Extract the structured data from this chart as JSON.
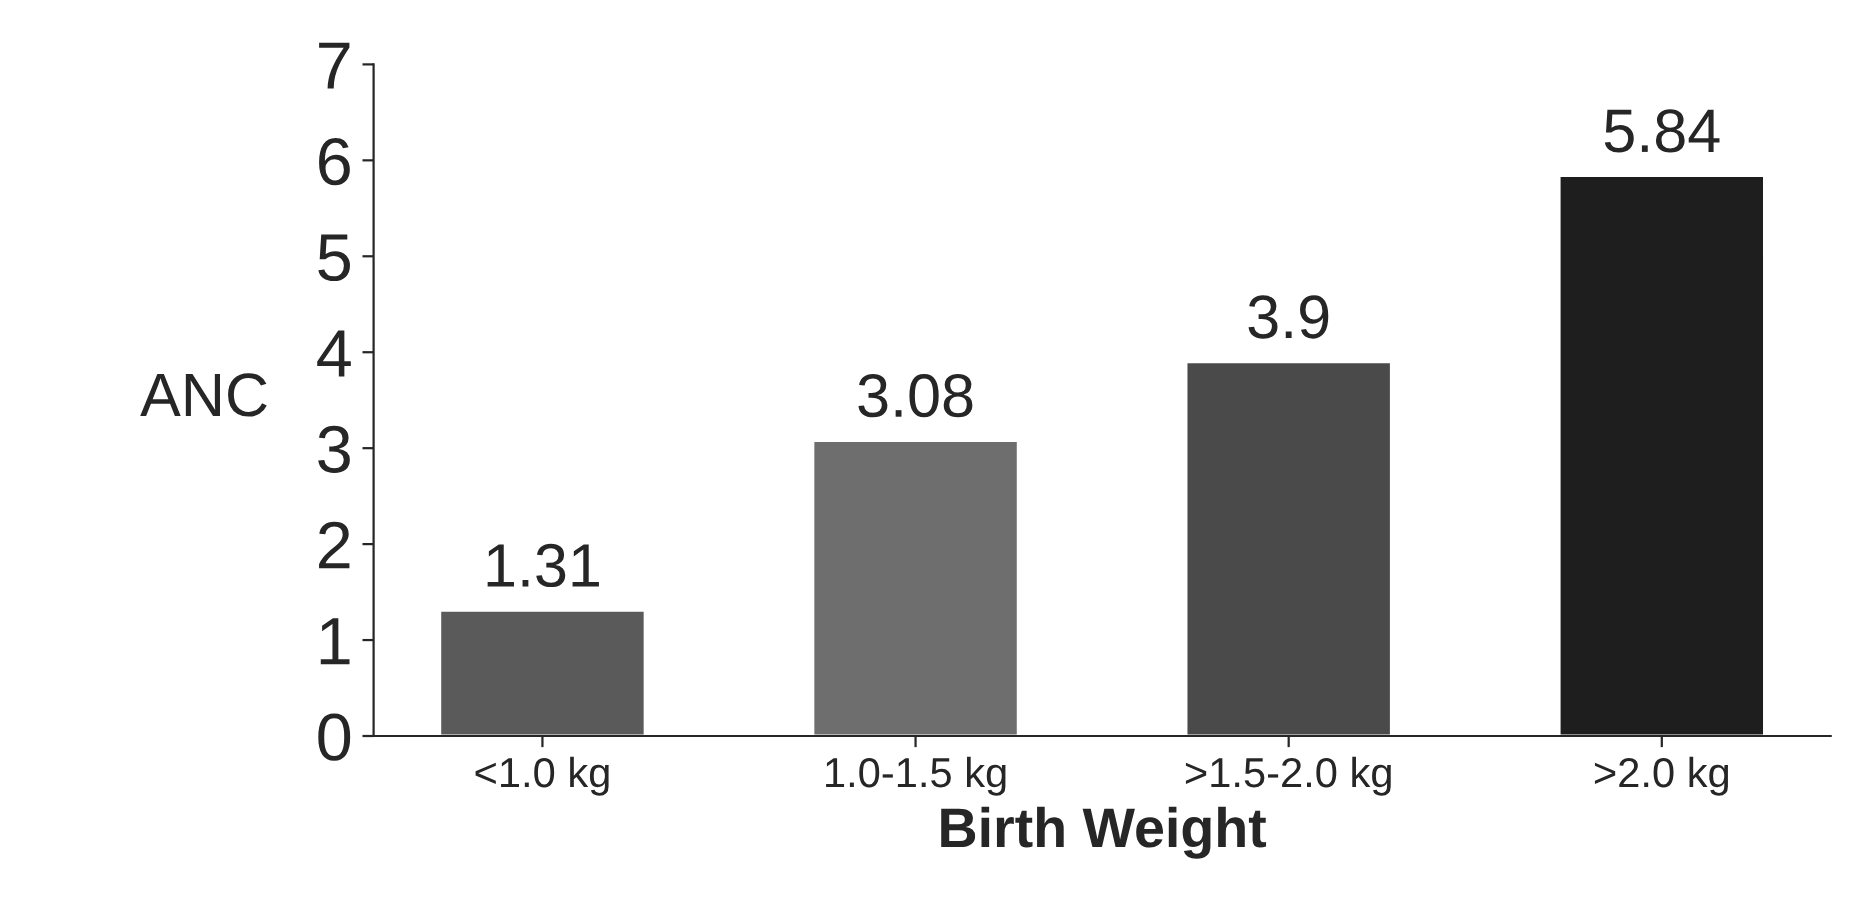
{
  "chart_data": {
    "type": "bar",
    "xlabel": "Birth Weight",
    "ylabel": "ANC",
    "categories": [
      "<1.0 kg",
      "1.0-1.5 kg",
      ">1.5-2.0 kg",
      ">2.0 kg"
    ],
    "values": [
      1.31,
      3.08,
      3.9,
      5.84
    ],
    "colors": [
      "#5a5a5a",
      "#6e6e6e",
      "#4a4a4a",
      "#1e1e1e"
    ],
    "ylim": [
      0,
      7
    ],
    "yticks": [
      0,
      1,
      2,
      3,
      4,
      5,
      6,
      7
    ],
    "grid": false,
    "data_labels": true
  }
}
